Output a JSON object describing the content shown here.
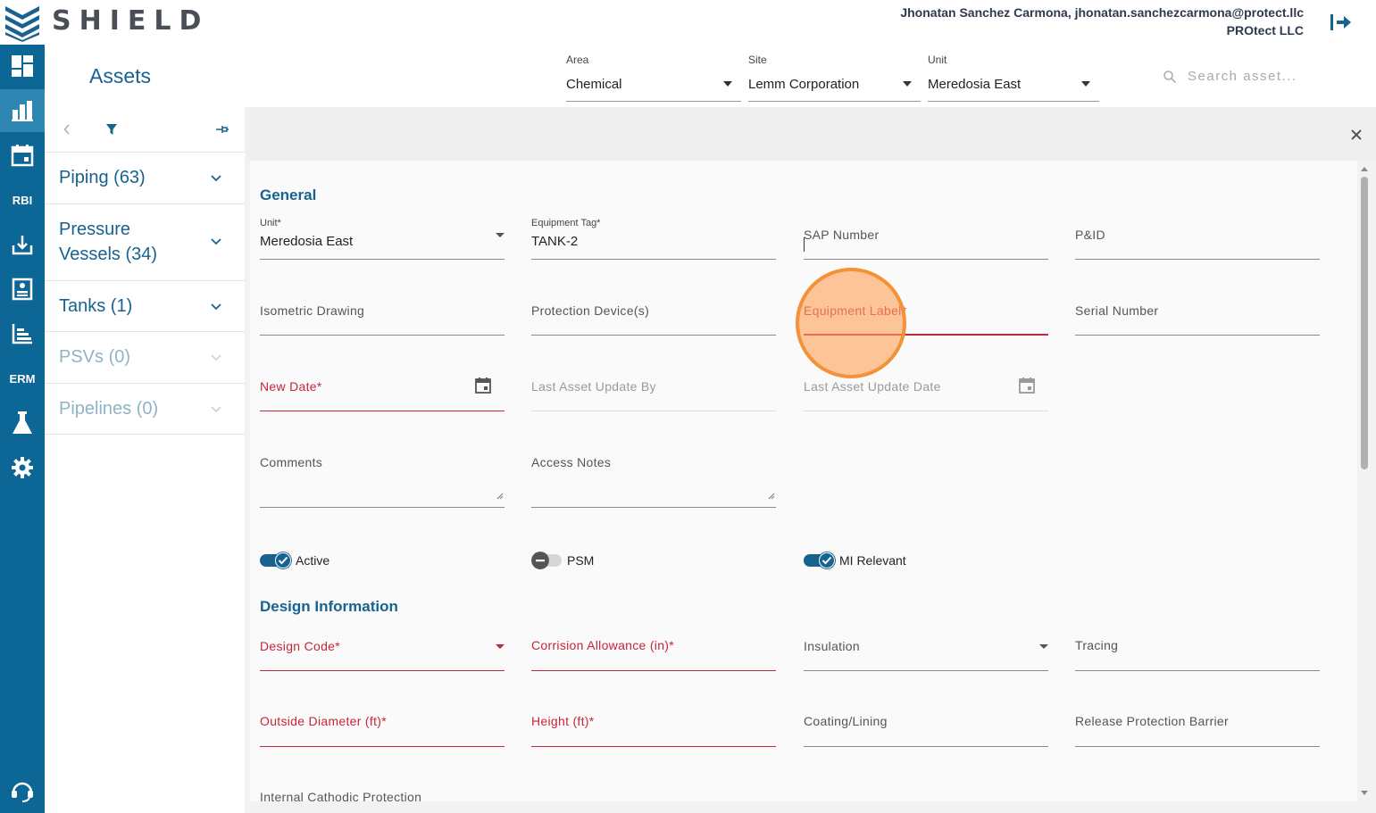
{
  "app": {
    "logo_text": "SHIELD",
    "user": "Jhonatan Sanchez Carmona, jhonatan.sanchezcarmona@protect.llc",
    "company": "PROtect LLC"
  },
  "rail": {
    "rbi_label": "RBI",
    "erm_label": "ERM"
  },
  "header": {
    "title": "Assets",
    "area": {
      "label": "Area",
      "value": "Chemical"
    },
    "site": {
      "label": "Site",
      "value": "Lemm Corporation"
    },
    "unit": {
      "label": "Unit",
      "value": "Meredosia East"
    },
    "search_placeholder": "Search asset..."
  },
  "categories": [
    {
      "label_line1": "Piping (63)",
      "label_line2": ""
    },
    {
      "label_line1": "Pressure",
      "label_line2": "Vessels (34)"
    },
    {
      "label_line1": "Tanks (1)",
      "label_line2": ""
    },
    {
      "label_line1": "PSVs (0)",
      "label_line2": ""
    },
    {
      "label_line1": "Pipelines (0)",
      "label_line2": ""
    }
  ],
  "general": {
    "title": "General",
    "unit": {
      "label": "Unit*",
      "value": "Meredosia East"
    },
    "equipment_tag": {
      "label": "Equipment Tag*",
      "value": "TANK-2"
    },
    "sap_number": "SAP Number",
    "pid": "P&ID",
    "isometric_drawing": "Isometric Drawing",
    "protection_devices": "Protection Device(s)",
    "equipment_label": "Equipment Label*",
    "serial_number": "Serial Number",
    "new_date": "New Date*",
    "last_update_by": "Last Asset Update By",
    "last_update_date": "Last Asset Update Date",
    "comments": "Comments",
    "access_notes": "Access Notes",
    "toggles": {
      "active": {
        "label": "Active",
        "on": true
      },
      "psm": {
        "label": "PSM",
        "on": false
      },
      "mi_relevant": {
        "label": "MI Relevant",
        "on": true
      }
    }
  },
  "design": {
    "title": "Design Information",
    "design_code": "Design Code*",
    "corrosion_allowance": "Corrision Allowance (in)*",
    "insulation": "Insulation",
    "tracing": "Tracing",
    "outside_diameter": "Outside Diameter (ft)*",
    "height": "Height (ft)*",
    "coating_lining": "Coating/Lining",
    "release_protection_barrier": "Release Protection Barrier",
    "internal_cathodic_protection": "Internal Cathodic Protection"
  },
  "colors": {
    "brand": "#0d6796",
    "accent_text": "#17628f",
    "required": "#c4263a",
    "marker": "#f39237"
  },
  "icons": [
    "shield-logo-icon",
    "logout-icon",
    "dashboard-icon",
    "assets-icon",
    "calendar-icon",
    "upload-icon",
    "report-icon",
    "chart-icon",
    "lab-flask-icon",
    "gear-icon",
    "headset-icon",
    "search-icon",
    "chevron-left-icon",
    "filter-icon",
    "pin-icon",
    "chevron-down-icon",
    "close-icon",
    "calendar-icon"
  ]
}
